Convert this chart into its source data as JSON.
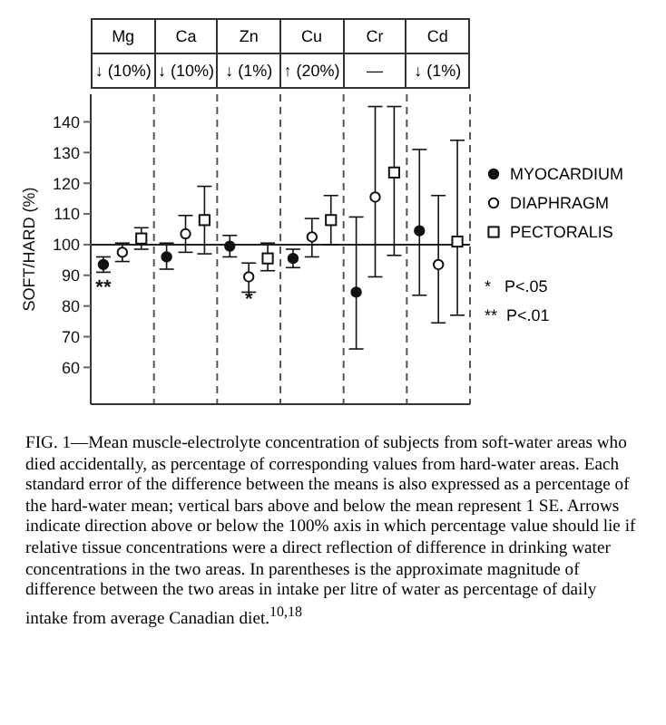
{
  "chart_data": {
    "type": "scatter",
    "ylabel": "SOFT/HARD (%)",
    "categories": [
      "Mg",
      "Ca",
      "Zn",
      "Cu",
      "Cr",
      "Cd"
    ],
    "series": [
      {
        "name": "MYOCARDIUM",
        "color": "#111111",
        "marker": "circle",
        "values": [
          93.5,
          96,
          99.5,
          95.5,
          84.5,
          104.5
        ],
        "errors": [
          [
            91,
            96
          ],
          [
            92,
            100.5
          ],
          [
            96,
            103
          ],
          [
            92.5,
            98.5
          ],
          [
            66,
            109
          ],
          [
            83.5,
            131
          ]
        ],
        "value_labels": [
          "**",
          null,
          null,
          null,
          null,
          null
        ]
      },
      {
        "name": "DIAPHRAGM",
        "color": "#111111",
        "marker": "circle-open",
        "values": [
          97.5,
          103.5,
          89.5,
          102.5,
          115.5,
          93.5
        ],
        "errors": [
          [
            94.5,
            100.5
          ],
          [
            97.5,
            109.5
          ],
          [
            84.5,
            94
          ],
          [
            96,
            108.5
          ],
          [
            89.5,
            145
          ],
          [
            74.5,
            116
          ]
        ],
        "value_labels": [
          null,
          null,
          "*",
          null,
          null,
          null
        ]
      },
      {
        "name": "PECTORALIS",
        "color": "#111111",
        "marker": "square-open",
        "values": [
          102,
          108,
          95.5,
          108,
          123.5,
          101
        ],
        "errors": [
          [
            98.5,
            105.5
          ],
          [
            97,
            119
          ],
          [
            91.5,
            100.5
          ],
          [
            100,
            116
          ],
          [
            96.5,
            145
          ],
          [
            77,
            134
          ]
        ]
      }
    ],
    "ylim": [
      48,
      149
    ],
    "yticks": [
      60,
      70,
      80,
      90,
      100,
      110,
      120,
      130,
      140
    ],
    "ref_lines": [
      {
        "axis": "y",
        "value": 100
      }
    ],
    "grid": "x",
    "legend": "right",
    "annotations": [
      "↓ (10%)",
      "↓ (10%)",
      "↓ (1%)",
      "↑ (20%)",
      "—",
      "↓ (1%)",
      "*   P<.05",
      "**  P<.01",
      "FIG. 1—Mean muscle-electrolyte concentration of subjects from soft-water areas who died accidentally, as percentage of corresponding values from hard-water areas. Each standard error of the difference between the means is also expressed as a percentage of the hard-water mean; vertical bars above and below the mean represent 1 SE. Arrows indicate direction above or below the 100% axis in which percentage value should lie if relative tissue concentrations were a direct reflection of difference in drinking water concentrations in the two areas. In parentheses is the approximate magnitude of difference between the two areas in intake per litre of water as percentage of daily intake from average Canadian diet.$^{10,18}$"
    ]
  }
}
